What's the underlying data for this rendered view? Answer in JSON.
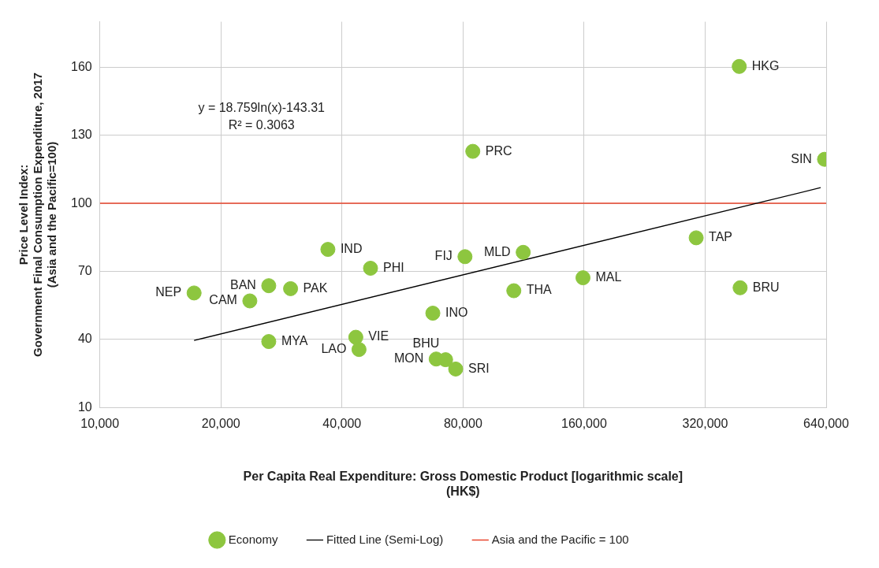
{
  "chart_data": {
    "type": "scatter",
    "xlabel": "Per Capita Real Expenditure: Gross Domestic Product [logarithmic scale]\n(HK$)",
    "ylabel": "Price Level Index:\nGovernment Final Consumption Expenditure, 2017\n(Asia and the Pacific=100)",
    "log": "x",
    "grid": true,
    "legend": "bottom",
    "xlim": [
      10000,
      640000
    ],
    "ylim": [
      10,
      180
    ],
    "xticks": [
      {
        "value": 10000,
        "label": "10,000"
      },
      {
        "value": 20000,
        "label": "20,000"
      },
      {
        "value": 40000,
        "label": "40,000"
      },
      {
        "value": 80000,
        "label": "80,000"
      },
      {
        "value": 160000,
        "label": "160,000"
      },
      {
        "value": 320000,
        "label": "320,000"
      },
      {
        "value": 640000,
        "label": "640,000"
      }
    ],
    "yticks": [
      10,
      40,
      70,
      100,
      130,
      160
    ],
    "series": [
      {
        "name": "Economy",
        "color": "#8dc63f",
        "marker": "circle",
        "x": [
          389000,
          634000,
          84600,
          304000,
          112900,
          80900,
          36900,
          47100,
          159000,
          107000,
          391000,
          26300,
          29800,
          17150,
          23600,
          67300,
          43300,
          26300,
          44100,
          68600,
          72400,
          76700
        ],
        "values": [
          160.3,
          119.4,
          122.9,
          84.8,
          78.4,
          76.5,
          79.7,
          71.4,
          67.2,
          61.5,
          62.8,
          63.7,
          62.4,
          60.5,
          57.0,
          51.6,
          41.0,
          39.1,
          35.6,
          31.4,
          31.1,
          27.0
        ]
      },
      {
        "name": "Fitted Line (Semi-Log)",
        "type": "line",
        "color": "#000000",
        "x": [
          17150,
          620000
        ],
        "values": [
          39.6,
          106.9
        ]
      }
    ],
    "ref_lines": [
      {
        "axis": "y",
        "value": 100,
        "label": "Asia and the Pacific = 100",
        "color": "#e8452c"
      }
    ],
    "annotations": [
      "y = 18.759ln(x)-143.31",
      "R² = 0.3063",
      {
        "text": "HKG",
        "x": 389000,
        "y": 160.3
      },
      {
        "text": "SIN",
        "x": 634000,
        "y": 119.4
      },
      {
        "text": "PRC",
        "x": 84600,
        "y": 122.9
      },
      {
        "text": "TAP",
        "x": 304000,
        "y": 84.8
      },
      {
        "text": "MLD",
        "x": 112900,
        "y": 78.4
      },
      {
        "text": "FIJ",
        "x": 80900,
        "y": 76.5
      },
      {
        "text": "IND",
        "x": 36900,
        "y": 79.7
      },
      {
        "text": "PHI",
        "x": 47100,
        "y": 71.4
      },
      {
        "text": "MAL",
        "x": 159000,
        "y": 67.2
      },
      {
        "text": "THA",
        "x": 107000,
        "y": 61.5
      },
      {
        "text": "BRU",
        "x": 391000,
        "y": 62.8
      },
      {
        "text": "BAN",
        "x": 26300,
        "y": 63.7
      },
      {
        "text": "PAK",
        "x": 29800,
        "y": 62.4
      },
      {
        "text": "NEP",
        "x": 17150,
        "y": 60.5
      },
      {
        "text": "CAM",
        "x": 23600,
        "y": 57.0
      },
      {
        "text": "INO",
        "x": 67300,
        "y": 51.6
      },
      {
        "text": "VIE",
        "x": 43300,
        "y": 41.0
      },
      {
        "text": "MYA",
        "x": 26300,
        "y": 39.1
      },
      {
        "text": "LAO",
        "x": 44100,
        "y": 35.6
      },
      {
        "text": "MON",
        "x": 68600,
        "y": 31.4
      },
      {
        "text": "BHU",
        "x": 72400,
        "y": 31.1
      },
      {
        "text": "SRI",
        "x": 76700,
        "y": 27.0
      }
    ]
  }
}
